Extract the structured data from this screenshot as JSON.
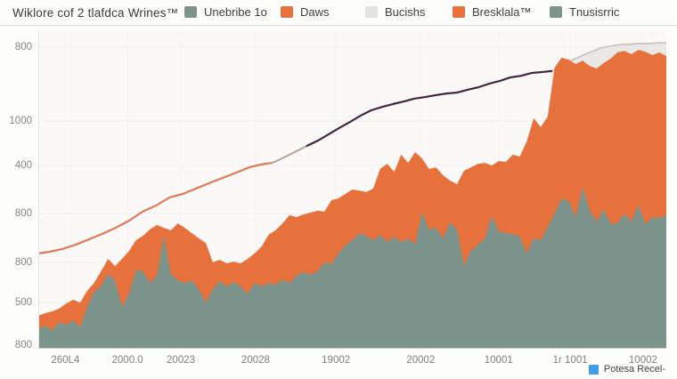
{
  "header": {
    "title": "Wiklore cof 2 tlafdca Wrines™",
    "legend": [
      {
        "label": "Unebribe 1o",
        "color": "#7c948c"
      },
      {
        "label": "Daws",
        "color": "#e7713c"
      },
      {
        "label": "Bucishs",
        "color": "#e5e3e0"
      },
      {
        "label": "Bresklala™",
        "color": "#e7713c"
      },
      {
        "label": "Tnusisrric",
        "color": "#7c948c"
      }
    ]
  },
  "footer_legend": {
    "label": "Potesa Recel-",
    "color": "#3e9ce9"
  },
  "colors": {
    "teal_area": "#7c948c",
    "orange_area": "#e7713c",
    "gray_line": "#c9c6c2",
    "gray_fill": "#eae8e5",
    "salmon_line": "#dd7a58",
    "transition_line": "#b3aaa2",
    "purple_line": "#44253e",
    "grid": "#f1efec",
    "grid_v": "#f4f2ef"
  },
  "chart_data": {
    "type": "area",
    "stacked": true,
    "title": "Wiklore cof 2 tlafdca Wrines™",
    "xlabel": "",
    "ylabel": "",
    "grid": true,
    "legend_position": "top",
    "y_unit": "percent of plot height (axis labels are as printed)",
    "y_ticks": [
      {
        "pos": 5.1,
        "label": "800"
      },
      {
        "pos": 28.4,
        "label": "1000"
      },
      {
        "pos": 42.4,
        "label": "400"
      },
      {
        "pos": 57.6,
        "label": "800"
      },
      {
        "pos": 73.0,
        "label": "800"
      },
      {
        "pos": 85.7,
        "label": "500"
      },
      {
        "pos": 99.2,
        "label": "800"
      }
    ],
    "x_ticks": [
      {
        "pos": 4.3,
        "label": "260L4"
      },
      {
        "pos": 14.2,
        "label": "2000.0"
      },
      {
        "pos": 22.7,
        "label": "20023"
      },
      {
        "pos": 34.6,
        "label": "20028"
      },
      {
        "pos": 47.4,
        "label": "19002"
      },
      {
        "pos": 60.9,
        "label": "20002"
      },
      {
        "pos": 73.3,
        "label": "10001"
      },
      {
        "pos": 84.7,
        "label": "1r 1001"
      },
      {
        "pos": 96.3,
        "label": "10002"
      }
    ],
    "series": [
      {
        "name": "Bucishs",
        "kind": "line_area",
        "color": "#c9c6c2",
        "fill": "#eae8e5",
        "points": [
          [
            81.7,
            87.4
          ],
          [
            82.8,
            88.5
          ],
          [
            84,
            89.9
          ],
          [
            85.1,
            91
          ],
          [
            86.2,
            91.9
          ],
          [
            87.4,
            93
          ],
          [
            88.5,
            93.8
          ],
          [
            89.6,
            94.7
          ],
          [
            90.8,
            95.2
          ],
          [
            91.9,
            95.5
          ],
          [
            93,
            95.8
          ],
          [
            94.2,
            95.8
          ],
          [
            95.3,
            96.1
          ],
          [
            96.5,
            96.1
          ],
          [
            97.6,
            96.1
          ],
          [
            98.7,
            96.3
          ],
          [
            100,
            96.3
          ]
        ]
      },
      {
        "name": "trend-salmon",
        "kind": "line",
        "color": "#dd7a58",
        "points": [
          [
            0,
            29.8
          ],
          [
            1.7,
            30.3
          ],
          [
            3.8,
            31.2
          ],
          [
            6,
            32.6
          ],
          [
            8.1,
            34.3
          ],
          [
            10.2,
            36
          ],
          [
            12.3,
            37.9
          ],
          [
            14.5,
            40.2
          ],
          [
            16.6,
            43
          ],
          [
            18.7,
            44.9
          ],
          [
            20.9,
            47.5
          ],
          [
            23,
            48.6
          ],
          [
            25.1,
            50.3
          ],
          [
            27.2,
            52
          ],
          [
            29.4,
            53.7
          ],
          [
            31.5,
            55.3
          ],
          [
            33.6,
            57
          ],
          [
            35.5,
            57.9
          ],
          [
            37.2,
            58.4
          ]
        ]
      },
      {
        "name": "trend-transition",
        "kind": "line",
        "color": "#b3aaa2",
        "points": [
          [
            37.2,
            58.4
          ],
          [
            38.6,
            59.6
          ],
          [
            40,
            61
          ],
          [
            41.4,
            62.4
          ],
          [
            42.8,
            63.8
          ]
        ]
      },
      {
        "name": "trend-purple",
        "kind": "line",
        "color": "#44253e",
        "points": [
          [
            42.8,
            63.8
          ],
          [
            44.5,
            65.4
          ],
          [
            46.2,
            67.4
          ],
          [
            47.9,
            69.4
          ],
          [
            49.6,
            71.3
          ],
          [
            51.3,
            73.3
          ],
          [
            53,
            75
          ],
          [
            54.8,
            76.1
          ],
          [
            56.5,
            77
          ],
          [
            58.2,
            77.8
          ],
          [
            59.9,
            78.7
          ],
          [
            61.6,
            79.2
          ],
          [
            63.3,
            79.8
          ],
          [
            65,
            80.3
          ],
          [
            66.7,
            80.6
          ],
          [
            68.4,
            81.5
          ],
          [
            70.1,
            82.3
          ],
          [
            71.8,
            83.4
          ],
          [
            73.5,
            84.3
          ],
          [
            75.2,
            85.4
          ],
          [
            76.9,
            85.9
          ],
          [
            78.6,
            86.8
          ],
          [
            80.3,
            87.1
          ],
          [
            81.7,
            87.4
          ]
        ]
      },
      {
        "name": "Daws",
        "kind": "area",
        "color": "#e7713c",
        "values": [
          10.1,
          11,
          11.5,
          12.4,
          14,
          15.2,
          14.3,
          18,
          20.5,
          24.2,
          28.1,
          25.8,
          28.1,
          30.6,
          34,
          35.4,
          37.4,
          38.8,
          37.9,
          37.1,
          39.3,
          37.9,
          36.2,
          34.6,
          33.1,
          27,
          27.8,
          26.7,
          27.2,
          26.7,
          28.1,
          29.8,
          32,
          35.7,
          37.1,
          39.3,
          41.9,
          41.3,
          42.1,
          42.7,
          43.3,
          43,
          46.6,
          47.2,
          48.6,
          50,
          49.7,
          49.2,
          50.3,
          56.5,
          58.1,
          55.6,
          61,
          58.4,
          61.8,
          59.8,
          56.5,
          57,
          54.5,
          52.8,
          51.7,
          55.9,
          57,
          58.1,
          58.4,
          57.6,
          59,
          58.7,
          61,
          60.4,
          65.2,
          72.5,
          69.7,
          73,
          88.5,
          91.6,
          91,
          89.6,
          90.7,
          89,
          88.2,
          89.9,
          91.3,
          93.3,
          93.8,
          92.7,
          94.1,
          93.5,
          92.4,
          93.3,
          92.1
        ]
      },
      {
        "name": "Unebribe 1o",
        "kind": "area",
        "color": "#7c948c",
        "values": [
          5.9,
          7,
          5.6,
          8.1,
          7.3,
          8.7,
          6.5,
          12.9,
          17.7,
          19.4,
          23.3,
          21.3,
          12.9,
          17.1,
          24.7,
          24.2,
          20.5,
          22.8,
          35.4,
          23.3,
          21.3,
          20.5,
          21.3,
          18.5,
          14.3,
          18.5,
          21.1,
          19.4,
          20.8,
          19.4,
          17.1,
          20.5,
          19.4,
          20.5,
          19.9,
          21.6,
          20.5,
          22.8,
          23.9,
          23,
          24.2,
          27,
          26.4,
          29.8,
          32.3,
          34,
          36.2,
          35.4,
          34,
          35.7,
          33.4,
          35.1,
          33.4,
          34.6,
          32.6,
          43,
          37.4,
          37.9,
          34.6,
          39.6,
          37.4,
          26.1,
          30.6,
          32.6,
          34.6,
          41.6,
          36.8,
          36.2,
          36,
          35.1,
          29.8,
          34.6,
          34,
          38.2,
          42.4,
          47.2,
          46.3,
          41.3,
          50.8,
          43.5,
          39.9,
          43.8,
          39.3,
          39.3,
          42.4,
          39.9,
          45.2,
          39,
          41.3,
          41,
          41.9
        ]
      }
    ]
  }
}
